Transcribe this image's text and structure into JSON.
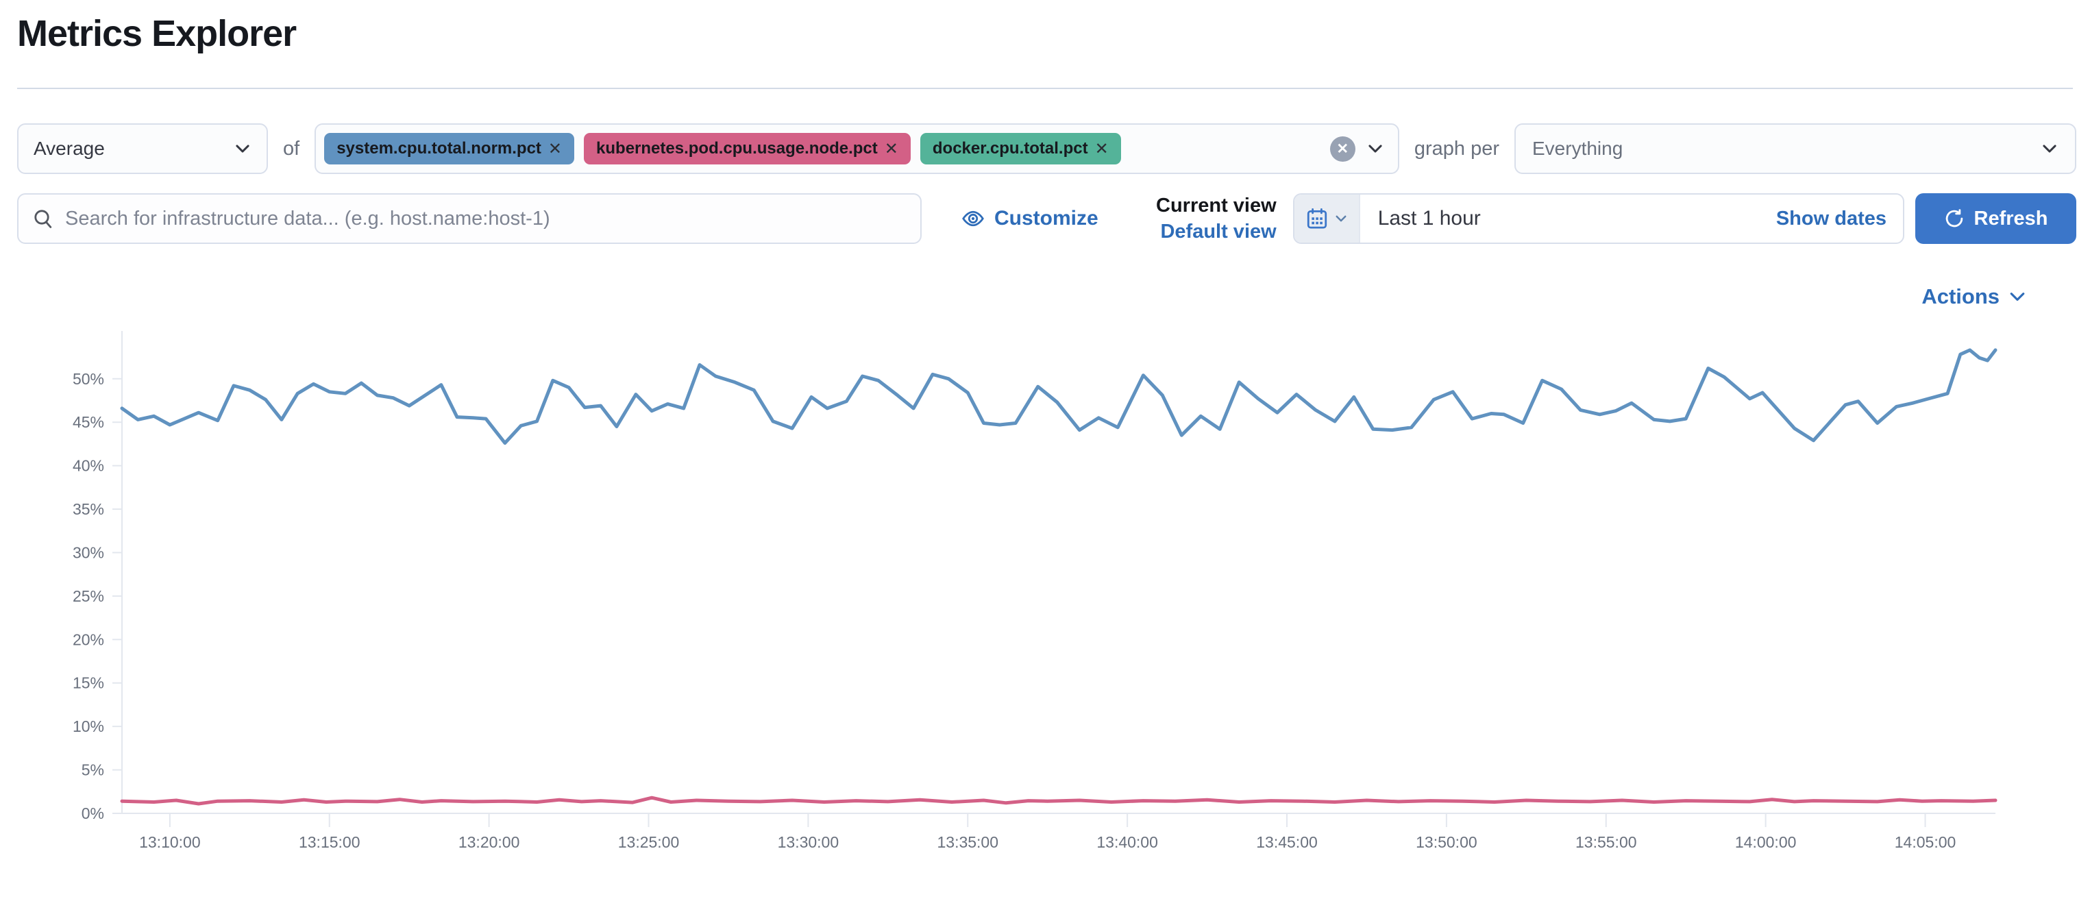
{
  "page": {
    "title": "Metrics Explorer"
  },
  "toolbar": {
    "aggregation": {
      "value": "Average"
    },
    "of_label": "of",
    "metrics": [
      {
        "label": "system.cpu.total.norm.pct",
        "remove_label": "✕",
        "color": "#6092C0"
      },
      {
        "label": "kubernetes.pod.cpu.usage.node.pct",
        "remove_label": "✕",
        "color": "#D36086"
      },
      {
        "label": "docker.cpu.total.pct",
        "remove_label": "✕",
        "color": "#54B399"
      }
    ],
    "clear_label": "✕",
    "graph_per_label": "graph per",
    "group_by": {
      "value": "Everything"
    }
  },
  "search": {
    "placeholder": "Search for infrastructure data... (e.g. host.name:host-1)"
  },
  "view_controls": {
    "customize_label": "Customize",
    "current_view_label": "Current view",
    "view_name": "Default view"
  },
  "time_picker": {
    "range_label": "Last 1 hour",
    "show_dates_label": "Show dates",
    "refresh_label": "Refresh"
  },
  "actions_label": "Actions",
  "chart_data": {
    "type": "line",
    "title": "",
    "xlabel": "",
    "ylabel": "",
    "x_domain_minutes": [
      0,
      58.7
    ],
    "ylim": [
      0,
      55.5
    ],
    "grid": false,
    "legend": "none",
    "y_ticks": [
      0,
      5,
      10,
      15,
      20,
      25,
      30,
      35,
      40,
      45,
      50
    ],
    "y_tick_suffix": "%",
    "x_ticks": {
      "labels": [
        "13:10:00",
        "13:15:00",
        "13:20:00",
        "13:25:00",
        "13:30:00",
        "13:35:00",
        "13:40:00",
        "13:45:00",
        "13:50:00",
        "13:55:00",
        "14:00:00",
        "14:05:00"
      ],
      "t": [
        1.5,
        6.5,
        11.5,
        16.5,
        21.5,
        26.5,
        31.5,
        36.5,
        41.5,
        46.5,
        51.5,
        56.5
      ]
    },
    "series": [
      {
        "name": "avg of system.cpu.total.norm.pct",
        "color": "#6092C0",
        "points": [
          [
            0,
            46.6
          ],
          [
            0.5,
            45.3
          ],
          [
            1,
            45.7
          ],
          [
            1.5,
            44.7
          ],
          [
            2.4,
            46.1
          ],
          [
            3,
            45.2
          ],
          [
            3.5,
            49.2
          ],
          [
            4,
            48.7
          ],
          [
            4.5,
            47.6
          ],
          [
            5,
            45.3
          ],
          [
            5.5,
            48.3
          ],
          [
            6,
            49.4
          ],
          [
            6.5,
            48.5
          ],
          [
            7,
            48.3
          ],
          [
            7.5,
            49.5
          ],
          [
            8,
            48.1
          ],
          [
            8.5,
            47.8
          ],
          [
            9,
            46.9
          ],
          [
            10,
            49.3
          ],
          [
            10.5,
            45.6
          ],
          [
            11,
            45.5
          ],
          [
            11.4,
            45.4
          ],
          [
            12,
            42.6
          ],
          [
            12.5,
            44.6
          ],
          [
            13,
            45.1
          ],
          [
            13.5,
            49.8
          ],
          [
            14,
            49.0
          ],
          [
            14.5,
            46.7
          ],
          [
            15,
            46.9
          ],
          [
            15.5,
            44.5
          ],
          [
            16.1,
            48.2
          ],
          [
            16.6,
            46.3
          ],
          [
            17.1,
            47.1
          ],
          [
            17.6,
            46.6
          ],
          [
            18.1,
            51.6
          ],
          [
            18.6,
            50.3
          ],
          [
            19.2,
            49.6
          ],
          [
            19.8,
            48.7
          ],
          [
            20.4,
            45.1
          ],
          [
            21,
            44.3
          ],
          [
            21.6,
            47.9
          ],
          [
            22.1,
            46.6
          ],
          [
            22.7,
            47.4
          ],
          [
            23.2,
            50.3
          ],
          [
            23.7,
            49.8
          ],
          [
            24.3,
            48.1
          ],
          [
            24.8,
            46.6
          ],
          [
            25.4,
            50.5
          ],
          [
            25.9,
            50.0
          ],
          [
            26.5,
            48.4
          ],
          [
            27,
            44.9
          ],
          [
            27.5,
            44.7
          ],
          [
            28,
            44.9
          ],
          [
            28.7,
            49.1
          ],
          [
            29.3,
            47.3
          ],
          [
            30,
            44.1
          ],
          [
            30.6,
            45.5
          ],
          [
            31.2,
            44.4
          ],
          [
            32,
            50.4
          ],
          [
            32.6,
            48.1
          ],
          [
            33.2,
            43.5
          ],
          [
            33.8,
            45.7
          ],
          [
            34.4,
            44.2
          ],
          [
            35,
            49.6
          ],
          [
            35.6,
            47.7
          ],
          [
            36.2,
            46.1
          ],
          [
            36.8,
            48.2
          ],
          [
            37.4,
            46.4
          ],
          [
            38,
            45.1
          ],
          [
            38.6,
            47.9
          ],
          [
            39.2,
            44.2
          ],
          [
            39.8,
            44.1
          ],
          [
            40.4,
            44.4
          ],
          [
            41.1,
            47.6
          ],
          [
            41.7,
            48.5
          ],
          [
            42.3,
            45.4
          ],
          [
            42.9,
            46.0
          ],
          [
            43.3,
            45.9
          ],
          [
            43.9,
            44.9
          ],
          [
            44.5,
            49.8
          ],
          [
            45.1,
            48.8
          ],
          [
            45.7,
            46.4
          ],
          [
            46.3,
            45.9
          ],
          [
            46.8,
            46.3
          ],
          [
            47.3,
            47.2
          ],
          [
            48,
            45.3
          ],
          [
            48.5,
            45.1
          ],
          [
            49,
            45.4
          ],
          [
            49.7,
            51.2
          ],
          [
            50.2,
            50.2
          ],
          [
            51,
            47.7
          ],
          [
            51.4,
            48.4
          ],
          [
            52.4,
            44.3
          ],
          [
            53,
            42.9
          ],
          [
            54,
            47.0
          ],
          [
            54.4,
            47.4
          ],
          [
            55,
            44.9
          ],
          [
            55.6,
            46.8
          ],
          [
            56.1,
            47.2
          ],
          [
            56.6,
            47.7
          ],
          [
            57.2,
            48.3
          ],
          [
            57.6,
            52.8
          ],
          [
            57.9,
            53.3
          ],
          [
            58.2,
            52.4
          ],
          [
            58.45,
            52.1
          ],
          [
            58.7,
            53.3
          ]
        ]
      },
      {
        "name": "avg of kubernetes.pod.cpu.usage.node.pct",
        "color": "#D36086",
        "points": [
          [
            0,
            1.4
          ],
          [
            1,
            1.3
          ],
          [
            1.7,
            1.5
          ],
          [
            2.4,
            1.1
          ],
          [
            3,
            1.4
          ],
          [
            4,
            1.45
          ],
          [
            5,
            1.3
          ],
          [
            5.7,
            1.55
          ],
          [
            6.4,
            1.3
          ],
          [
            7,
            1.4
          ],
          [
            8,
            1.35
          ],
          [
            8.7,
            1.6
          ],
          [
            9.4,
            1.3
          ],
          [
            10,
            1.45
          ],
          [
            11,
            1.35
          ],
          [
            12,
            1.4
          ],
          [
            13,
            1.3
          ],
          [
            13.7,
            1.55
          ],
          [
            14.4,
            1.35
          ],
          [
            15,
            1.45
          ],
          [
            16,
            1.25
          ],
          [
            16.6,
            1.8
          ],
          [
            17.2,
            1.3
          ],
          [
            18,
            1.5
          ],
          [
            19,
            1.4
          ],
          [
            20,
            1.35
          ],
          [
            21,
            1.5
          ],
          [
            22,
            1.3
          ],
          [
            23,
            1.45
          ],
          [
            24,
            1.35
          ],
          [
            25,
            1.55
          ],
          [
            26,
            1.3
          ],
          [
            27,
            1.5
          ],
          [
            27.7,
            1.2
          ],
          [
            28.4,
            1.45
          ],
          [
            29,
            1.4
          ],
          [
            30,
            1.5
          ],
          [
            31,
            1.3
          ],
          [
            32,
            1.45
          ],
          [
            33,
            1.4
          ],
          [
            34,
            1.55
          ],
          [
            35,
            1.3
          ],
          [
            36,
            1.45
          ],
          [
            37,
            1.4
          ],
          [
            38,
            1.3
          ],
          [
            39,
            1.5
          ],
          [
            40,
            1.35
          ],
          [
            41,
            1.45
          ],
          [
            42,
            1.4
          ],
          [
            43,
            1.3
          ],
          [
            44,
            1.5
          ],
          [
            45,
            1.4
          ],
          [
            46,
            1.35
          ],
          [
            47,
            1.5
          ],
          [
            48,
            1.3
          ],
          [
            49,
            1.45
          ],
          [
            50,
            1.4
          ],
          [
            51,
            1.35
          ],
          [
            51.7,
            1.6
          ],
          [
            52.4,
            1.35
          ],
          [
            53,
            1.45
          ],
          [
            54,
            1.4
          ],
          [
            55,
            1.35
          ],
          [
            55.7,
            1.55
          ],
          [
            56.4,
            1.4
          ],
          [
            57,
            1.45
          ],
          [
            58,
            1.4
          ],
          [
            58.7,
            1.5
          ]
        ]
      }
    ]
  }
}
